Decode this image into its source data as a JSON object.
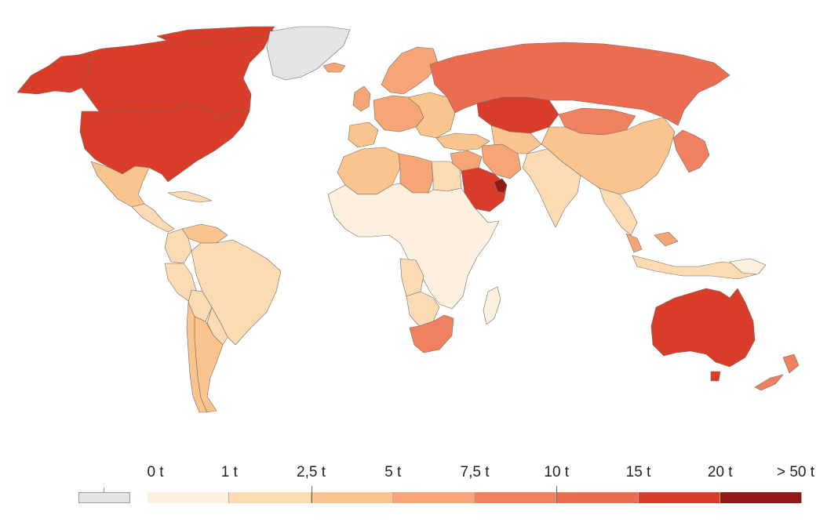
{
  "map": {
    "colors": {
      "no_data": "#e4e4e4",
      "bin_0_1": "#fdf0df",
      "bin_1_2_5": "#fbdbb3",
      "bin_2_5_5": "#f9c48e",
      "bin_5_7_5": "#f6a676",
      "bin_7_5_10": "#ef8160",
      "bin_10_15": "#ec6c52",
      "bin_15_20": "#d93d2a",
      "bin_20_50": "#8f1a17"
    },
    "countries": {
      "canada": "bin_15_20",
      "usa": "bin_15_20",
      "alaska": "bin_15_20",
      "greenland": "no_data",
      "mexico": "bin_2_5_5",
      "central_america": "bin_1_2_5",
      "caribbean": "bin_1_2_5",
      "venezuela": "bin_2_5_5",
      "colombia": "bin_1_2_5",
      "brazil": "bin_1_2_5",
      "peru": "bin_1_2_5",
      "bolivia": "bin_1_2_5",
      "chile": "bin_2_5_5",
      "argentina": "bin_2_5_5",
      "uruguay_paraguay": "bin_1_2_5",
      "iceland": "bin_5_7_5",
      "scandinavia": "bin_5_7_5",
      "western_europe": "bin_5_7_5",
      "eastern_europe": "bin_2_5_5",
      "uk_ireland": "bin_5_7_5",
      "iberia": "bin_2_5_5",
      "russia": "bin_10_15",
      "kazakhstan": "bin_15_20",
      "central_asia": "bin_2_5_5",
      "turkey": "bin_2_5_5",
      "iran": "bin_5_7_5",
      "saudi_arabia": "bin_15_20",
      "gulf_states": "bin_20_50",
      "middle_east": "bin_5_7_5",
      "mongolia": "bin_7_5_10",
      "china": "bin_2_5_5",
      "korea_japan": "bin_7_5_10",
      "india_south_asia": "bin_1_2_5",
      "southeast_asia": "bin_1_2_5",
      "malaysia": "bin_5_7_5",
      "indonesia": "bin_1_2_5",
      "north_africa": "bin_2_5_5",
      "libya": "bin_5_7_5",
      "egypt": "bin_1_2_5",
      "sub_saharan_africa": "bin_0_1",
      "angola_gabon": "bin_1_2_5",
      "namibia_botswana": "bin_1_2_5",
      "south_africa": "bin_7_5_10",
      "madagascar": "bin_0_1",
      "australia": "bin_15_20",
      "new_zealand": "bin_7_5_10",
      "papua": "bin_0_1"
    }
  },
  "legend": {
    "no_data_color": "#e4e4e4",
    "tick_labels": [
      "0 t",
      "1 t",
      "2,5 t",
      "5 t",
      "7,5 t",
      "10 t",
      "15 t",
      "20 t",
      "> 50 t"
    ],
    "bin_colors": [
      "#fdf0df",
      "#fbdbb3",
      "#f9c48e",
      "#f6a676",
      "#ef8160",
      "#ec6c52",
      "#d93d2a",
      "#8f1a17"
    ]
  }
}
